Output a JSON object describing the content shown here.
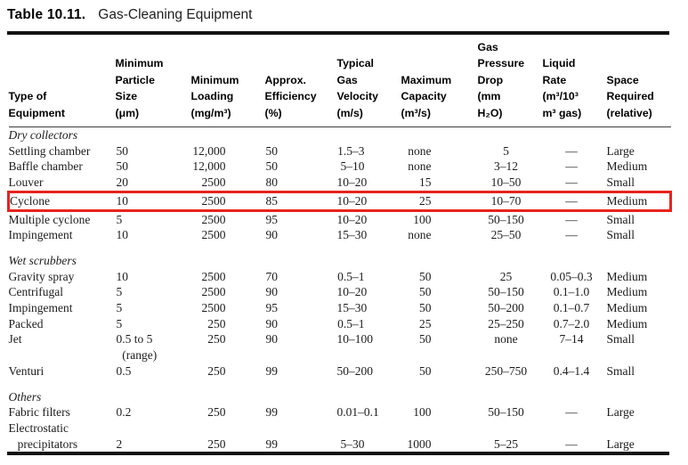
{
  "figure": {
    "label": "Table 10.11.",
    "caption": "Gas-Cleaning Equipment"
  },
  "table": {
    "highlight_color": "#e8231d",
    "columns": [
      {
        "id": "type-of-equipment",
        "header": "Type of\nEquipment"
      },
      {
        "id": "min-particle-size",
        "header": "Minimum\nParticle\nSize\n(μm)"
      },
      {
        "id": "min-loading",
        "header": "Minimum\nLoading\n(mg/m³)"
      },
      {
        "id": "approx-efficiency",
        "header": "Approx.\nEfficiency\n(%)"
      },
      {
        "id": "typical-gas-velocity",
        "header": "Typical\nGas\nVelocity\n(m/s)"
      },
      {
        "id": "max-capacity",
        "header": "Maximum\nCapacity\n(m³/s)"
      },
      {
        "id": "gas-pressure-drop",
        "header": "Gas\nPressure\nDrop\n(mm\nH₂O)"
      },
      {
        "id": "liquid-rate",
        "header": "Liquid\nRate\n(m³/10³\nm³ gas)"
      },
      {
        "id": "space-required",
        "header": "Space\nRequired\n(relative)"
      }
    ],
    "sections": [
      {
        "label": "Dry collectors",
        "rows": [
          {
            "cells": [
              "Settling chamber",
              "50",
              "12,000",
              "50",
              "1.5–3",
              "none",
              "5",
              "—",
              "Large"
            ],
            "highlighted": false
          },
          {
            "cells": [
              "Baffle chamber",
              "50",
              "12,000",
              "50",
              "5–10",
              "none",
              "3–12",
              "—",
              "Medium"
            ],
            "highlighted": false
          },
          {
            "cells": [
              "Louver",
              "20",
              "2500",
              "80",
              "10–20",
              "15",
              "10–50",
              "—",
              "Small"
            ],
            "highlighted": false
          },
          {
            "cells": [
              "Cyclone",
              "10",
              "2500",
              "85",
              "10–20",
              "25",
              "10–70",
              "—",
              "Medium"
            ],
            "highlighted": true
          },
          {
            "cells": [
              "Multiple cyclone",
              "5",
              "2500",
              "95",
              "10–20",
              "100",
              "50–150",
              "—",
              "Small"
            ],
            "highlighted": false
          },
          {
            "cells": [
              "Impingement",
              "10",
              "2500",
              "90",
              "15–30",
              "none",
              "25–50",
              "—",
              "Small"
            ],
            "highlighted": false
          }
        ]
      },
      {
        "label": "Wet scrubbers",
        "rows": [
          {
            "cells": [
              "Gravity spray",
              "10",
              "2500",
              "70",
              "0.5–1",
              "50",
              "25",
              "0.05–0.3",
              "Medium"
            ],
            "highlighted": false
          },
          {
            "cells": [
              "Centrifugal",
              "5",
              "2500",
              "90",
              "10–20",
              "50",
              "50–150",
              "0.1–1.0",
              "Medium"
            ],
            "highlighted": false
          },
          {
            "cells": [
              "Impingement",
              "5",
              "2500",
              "95",
              "15–30",
              "50",
              "50–200",
              "0.1–0.7",
              "Medium"
            ],
            "highlighted": false
          },
          {
            "cells": [
              "Packed",
              "5",
              "250",
              "90",
              "0.5–1",
              "25",
              "25–250",
              "0.7–2.0",
              "Medium"
            ],
            "highlighted": false
          },
          {
            "cells": [
              "Jet",
              "0.5 to 5\n  (range)",
              "250",
              "90",
              "10–100",
              "50",
              "none",
              "7–14",
              "Small"
            ],
            "highlighted": false
          },
          {
            "cells": [
              "Venturi",
              "0.5",
              "250",
              "99",
              "50–200",
              "50",
              "250–750",
              "0.4–1.4",
              "Small"
            ],
            "highlighted": false
          }
        ]
      },
      {
        "label": "Others",
        "rows": [
          {
            "cells": [
              "Fabric filters",
              "0.2",
              "250",
              "99",
              "0.01–0.1",
              "100",
              "50–150",
              "—",
              "Large"
            ],
            "highlighted": false
          },
          {
            "cells": [
              "Electrostatic\n   precipitators",
              "2",
              "250",
              "99",
              "5–30",
              "1000",
              "5–25",
              "—",
              "Large"
            ],
            "highlighted": false
          }
        ]
      }
    ]
  }
}
